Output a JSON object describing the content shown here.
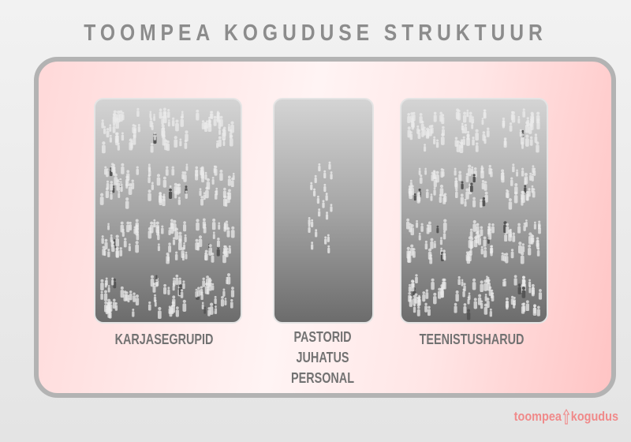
{
  "title": "TOOMPEA KOGUDUSE STRUKTUUR",
  "panels": [
    {
      "label_lines": [
        "KARJASEGRUPID"
      ],
      "icon": "people-groups-icon"
    },
    {
      "label_lines": [
        "PASTORID",
        "JUHATUS",
        "PERSONAL"
      ],
      "icon": "people-groups-icon"
    },
    {
      "label_lines": [
        "TEENISTUSHARUD"
      ],
      "icon": "people-groups-icon"
    }
  ],
  "logo": {
    "left": "toompea",
    "right": "kogudus",
    "icon": "up-arrow-icon",
    "color": "#f08a8a"
  }
}
